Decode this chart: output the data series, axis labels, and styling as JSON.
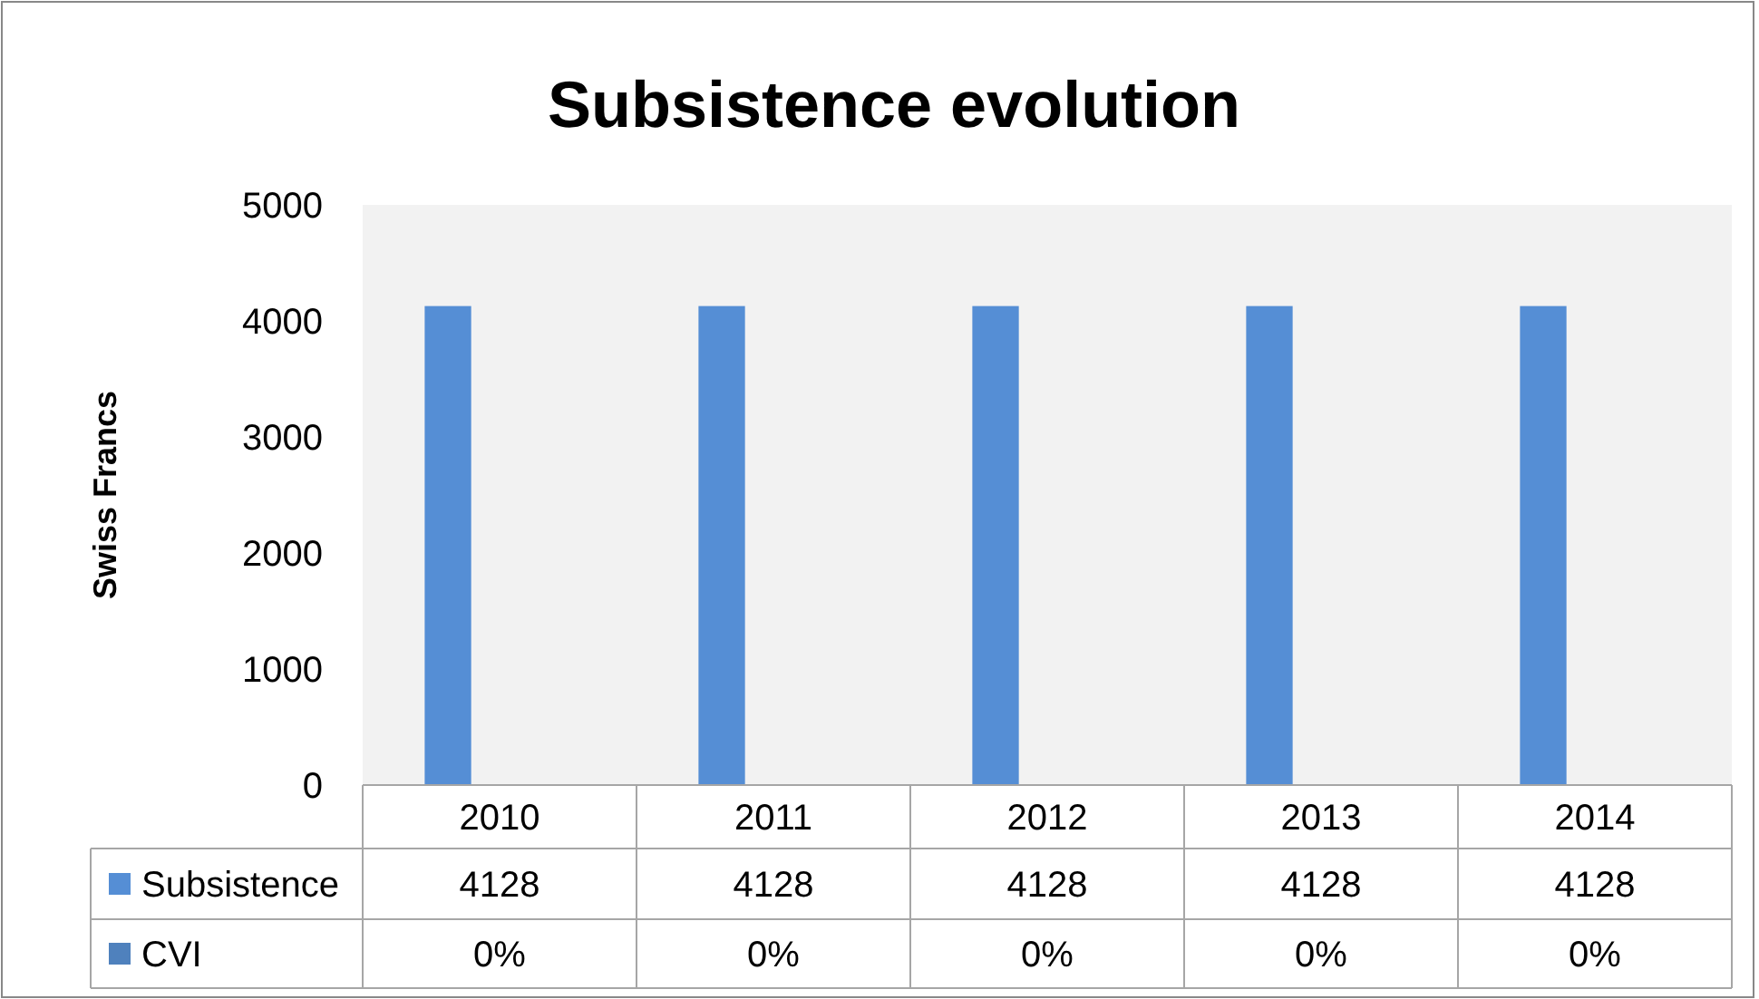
{
  "chart_data": {
    "type": "bar",
    "title": "Subsistence evolution",
    "ylabel": "Swiss Francs",
    "categories": [
      "2010",
      "2011",
      "2012",
      "2013",
      "2014"
    ],
    "series": [
      {
        "name": "Subsistence",
        "color": "#558ed5",
        "values": [
          4128,
          4128,
          4128,
          4128,
          4128
        ],
        "value_labels": [
          "4128",
          "4128",
          "4128",
          "4128",
          "4128"
        ]
      },
      {
        "name": "CVI",
        "color": "#4f81bd",
        "values": [
          0,
          0,
          0,
          0,
          0
        ],
        "value_labels": [
          "0%",
          "0%",
          "0%",
          "0%",
          "0%"
        ]
      }
    ],
    "ylim": [
      0,
      5000
    ],
    "yticks": [
      0,
      1000,
      2000,
      3000,
      4000,
      5000
    ],
    "grid": false
  }
}
